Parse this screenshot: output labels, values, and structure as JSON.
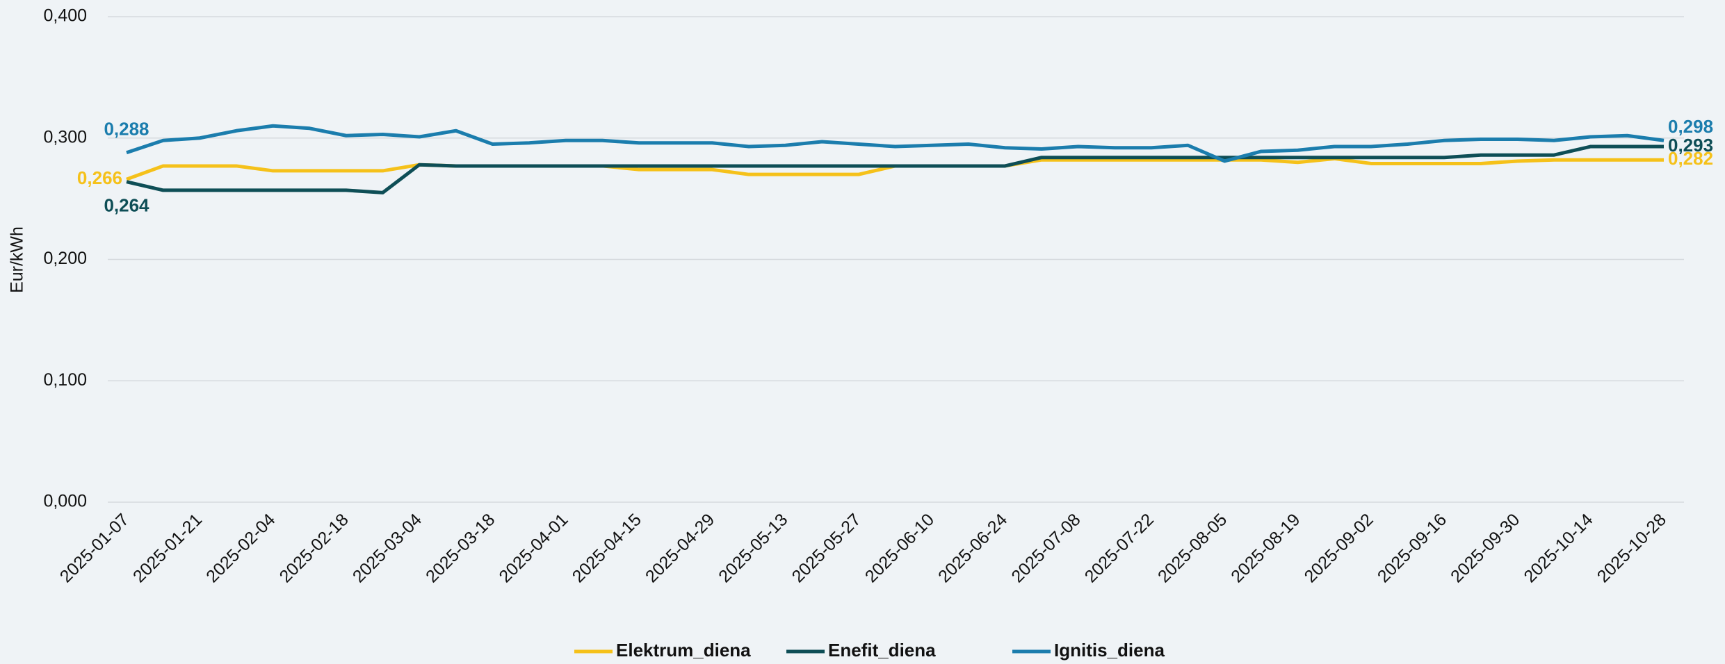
{
  "chart_data": {
    "type": "line",
    "y_label": "Eur/kWh",
    "categories": [
      "2025-01-07",
      null,
      "2025-01-21",
      null,
      "2025-02-04",
      null,
      "2025-02-18",
      null,
      "2025-03-04",
      null,
      "2025-03-18",
      null,
      "2025-04-01",
      null,
      "2025-04-15",
      null,
      "2025-04-29",
      null,
      "2025-05-13",
      null,
      "2025-05-27",
      null,
      "2025-06-10",
      null,
      "2025-06-24",
      null,
      "2025-07-08",
      null,
      "2025-07-22",
      null,
      "2025-08-05",
      null,
      "2025-08-19",
      null,
      "2025-09-02",
      null,
      "2025-09-16",
      null,
      "2025-09-30",
      null,
      "2025-10-14",
      null,
      "2025-10-28"
    ],
    "series": [
      {
        "name": "Elektrum_diena",
        "color": "#f5c11a",
        "values": [
          0.266,
          0.277,
          0.277,
          0.277,
          0.273,
          0.273,
          0.273,
          0.273,
          0.278,
          0.277,
          0.277,
          0.277,
          0.277,
          0.277,
          0.274,
          0.274,
          0.274,
          0.27,
          0.27,
          0.27,
          0.27,
          0.277,
          0.277,
          0.277,
          0.277,
          0.282,
          0.282,
          0.282,
          0.282,
          0.282,
          0.282,
          0.282,
          0.28,
          0.283,
          0.279,
          0.279,
          0.279,
          0.279,
          0.281,
          0.282,
          0.282,
          0.282,
          0.282
        ],
        "value_labels": [
          "0,266",
          null,
          null,
          null,
          null,
          null,
          null,
          null,
          null,
          null,
          null,
          null,
          null,
          null,
          null,
          null,
          null,
          null,
          null,
          null,
          null,
          null,
          null,
          null,
          null,
          null,
          null,
          null,
          null,
          null,
          null,
          null,
          null,
          null,
          null,
          null,
          null,
          null,
          null,
          null,
          null,
          null,
          "0,282"
        ]
      },
      {
        "name": "Enefit_diena",
        "color": "#0e4e56",
        "values": [
          0.264,
          0.257,
          0.257,
          0.257,
          0.257,
          0.257,
          0.257,
          0.255,
          0.278,
          0.277,
          0.277,
          0.277,
          0.277,
          0.277,
          0.277,
          0.277,
          0.277,
          0.277,
          0.277,
          0.277,
          0.277,
          0.277,
          0.277,
          0.277,
          0.277,
          0.284,
          0.284,
          0.284,
          0.284,
          0.284,
          0.284,
          0.284,
          0.284,
          0.284,
          0.284,
          0.284,
          0.284,
          0.286,
          0.286,
          0.286,
          0.293,
          0.293,
          0.293
        ],
        "value_labels": [
          "0,264",
          null,
          null,
          null,
          null,
          null,
          null,
          null,
          null,
          null,
          null,
          null,
          null,
          null,
          null,
          null,
          null,
          null,
          null,
          null,
          null,
          null,
          null,
          null,
          null,
          null,
          null,
          null,
          null,
          null,
          null,
          null,
          null,
          null,
          null,
          null,
          null,
          null,
          null,
          null,
          null,
          null,
          "0,293"
        ]
      },
      {
        "name": "Ignitis_diena",
        "color": "#1b7dad",
        "values": [
          0.288,
          0.298,
          0.3,
          0.306,
          0.31,
          0.308,
          0.302,
          0.303,
          0.301,
          0.306,
          0.295,
          0.296,
          0.298,
          0.298,
          0.296,
          0.296,
          0.296,
          0.293,
          0.294,
          0.297,
          0.295,
          0.293,
          0.294,
          0.295,
          0.292,
          0.291,
          0.293,
          0.292,
          0.292,
          0.294,
          0.281,
          0.289,
          0.29,
          0.293,
          0.293,
          0.295,
          0.298,
          0.299,
          0.299,
          0.298,
          0.301,
          0.302,
          0.298
        ],
        "value_labels": [
          "0,288",
          null,
          null,
          null,
          null,
          null,
          null,
          null,
          null,
          null,
          null,
          null,
          null,
          null,
          null,
          null,
          null,
          null,
          null,
          null,
          null,
          null,
          null,
          null,
          null,
          null,
          null,
          null,
          null,
          null,
          null,
          null,
          null,
          null,
          null,
          null,
          null,
          null,
          null,
          null,
          null,
          null,
          "0,298"
        ]
      }
    ],
    "ylim": [
      0,
      0.4
    ],
    "yticks": [
      {
        "value": 0,
        "label": "0,000"
      },
      {
        "value": 0.1,
        "label": "0,100"
      },
      {
        "value": 0.2,
        "label": "0,200"
      },
      {
        "value": 0.3,
        "label": "0,300"
      },
      {
        "value": 0.4,
        "label": "0,400"
      }
    ],
    "grid": true,
    "legend": "bottom"
  }
}
